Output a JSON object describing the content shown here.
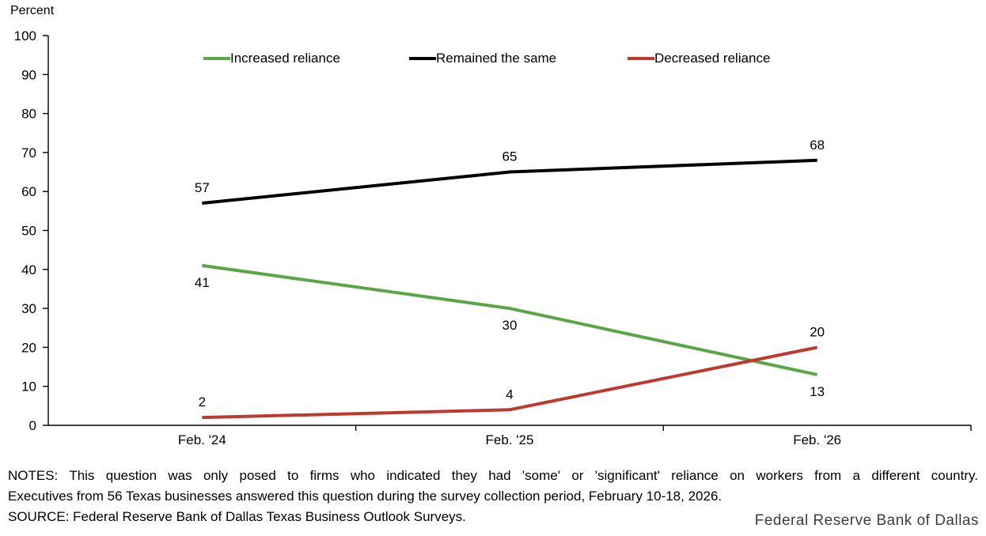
{
  "chart_data": {
    "type": "line",
    "title": "",
    "unit_label": "Percent",
    "categories": [
      "Feb. '24",
      "Feb. '25",
      "Feb. '26"
    ],
    "series": [
      {
        "name": "Increased reliance",
        "color": "#5AA546",
        "values": [
          41,
          30,
          13
        ],
        "data_label_position": "below"
      },
      {
        "name": "Remained the same",
        "color": "#000000",
        "values": [
          57,
          65,
          68
        ],
        "data_label_position": "above"
      },
      {
        "name": "Decreased reliance",
        "color": "#BE3A2E",
        "values": [
          2,
          4,
          20
        ],
        "data_label_position": "above"
      }
    ],
    "ylim": [
      0,
      100
    ],
    "ytick_step": 10,
    "grid": false,
    "legend_position": "top",
    "axis_color": "#000000"
  },
  "notes": {
    "line1": "NOTES: This question was only posed to firms who indicated they had 'some' or 'significant' reliance on workers from a different country.",
    "line2": "Executives from 56 Texas businesses answered this question during the survey collection period, February 10-18, 2026.",
    "source": "SOURCE: Federal Reserve Bank of Dallas Texas Business Outlook Surveys."
  },
  "branding": "Federal Reserve Bank of Dallas"
}
